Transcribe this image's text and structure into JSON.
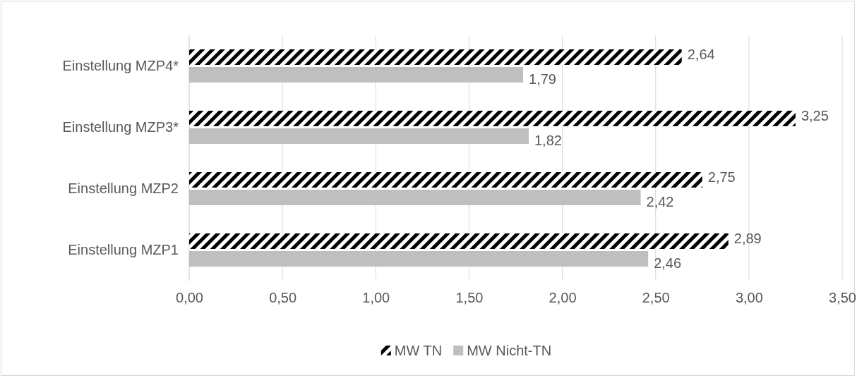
{
  "chart_data": {
    "type": "bar",
    "orientation": "horizontal",
    "categories": [
      "Einstellung MZP4*",
      "Einstellung MZP3*",
      "Einstellung MZP2",
      "Einstellung MZP1"
    ],
    "series": [
      {
        "name": "MW TN",
        "color": "#000000",
        "values": [
          2.64,
          3.25,
          2.75,
          2.89
        ],
        "value_labels": [
          "2,64",
          "3,25",
          "2,75",
          "2,89"
        ]
      },
      {
        "name": "MW Nicht-TN",
        "color": "#bfbfbf",
        "values": [
          1.79,
          1.82,
          2.42,
          2.46
        ],
        "value_labels": [
          "1,79",
          "1,82",
          "2,42",
          "2,46"
        ]
      }
    ],
    "xlim": [
      0,
      3.5
    ],
    "xticks": [
      {
        "value": 0,
        "label": "0,00"
      },
      {
        "value": 0.5,
        "label": "0,50"
      },
      {
        "value": 1,
        "label": "1,00"
      },
      {
        "value": 1.5,
        "label": "1,50"
      },
      {
        "value": 2,
        "label": "2,00"
      },
      {
        "value": 2.5,
        "label": "2,50"
      },
      {
        "value": 3,
        "label": "3,00"
      },
      {
        "value": 3.5,
        "label": "3,50"
      }
    ],
    "grid": "x",
    "legend": "bottom"
  }
}
